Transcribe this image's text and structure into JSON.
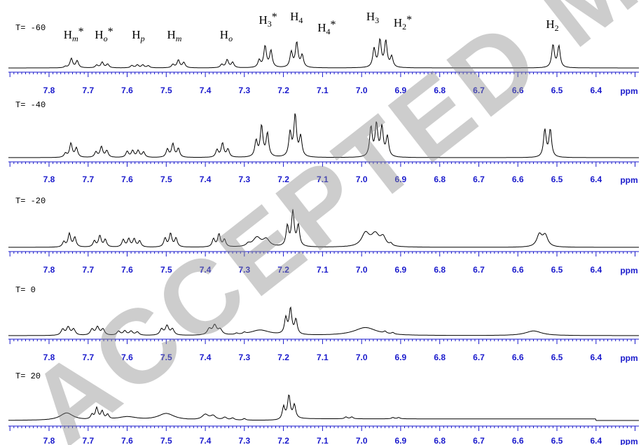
{
  "chart_data": {
    "type": "line",
    "x_unit": "ppm",
    "xlim": [
      6.3,
      7.9
    ],
    "x_reversed": true,
    "xtick_labels": [
      "7.8",
      "7.7",
      "7.6",
      "7.5",
      "7.4",
      "7.3",
      "7.2",
      "7.1",
      "7.0",
      "6.9",
      "6.8",
      "6.7",
      "6.6",
      "6.5",
      "6.4"
    ],
    "peak_labels": [
      {
        "label": "Hm*",
        "base": "H",
        "sub": "m",
        "sup": "*",
        "ppm": 7.745
      },
      {
        "label": "Ho*",
        "base": "H",
        "sub": "o",
        "sup": "*",
        "ppm": 7.665
      },
      {
        "label": "Hp",
        "base": "H",
        "sub": "p",
        "sup": "",
        "ppm": 7.57
      },
      {
        "label": "Hm",
        "base": "H",
        "sub": "m",
        "sup": "",
        "ppm": 7.48
      },
      {
        "label": "Ho",
        "base": "H",
        "sub": "o",
        "sup": "",
        "ppm": 7.345
      },
      {
        "label": "H3*",
        "base": "H",
        "sub": "3",
        "sup": "*",
        "ppm": 7.245
      },
      {
        "label": "H4",
        "base": "H",
        "sub": "4",
        "sup": "",
        "ppm": 7.165
      },
      {
        "label": "H4*",
        "base": "H",
        "sub": "4",
        "sup": "*",
        "ppm": 7.095
      },
      {
        "label": "H3",
        "base": "H",
        "sub": "3",
        "sup": "",
        "ppm": 6.97
      },
      {
        "label": "H2*",
        "base": "H",
        "sub": "2",
        "sup": "*",
        "ppm": 6.9
      },
      {
        "label": "H2",
        "base": "H",
        "sub": "2",
        "sup": "",
        "ppm": 6.51
      }
    ],
    "spectra": [
      {
        "temperature_label": "T= -60",
        "peaks": [
          [
            7.758,
            0.1,
            0.004
          ],
          [
            7.743,
            0.7,
            0.004
          ],
          [
            7.728,
            0.52,
            0.004
          ],
          [
            7.678,
            0.2,
            0.004
          ],
          [
            7.664,
            0.42,
            0.004
          ],
          [
            7.65,
            0.28,
            0.004
          ],
          [
            7.588,
            0.18,
            0.004
          ],
          [
            7.574,
            0.22,
            0.004
          ],
          [
            7.56,
            0.22,
            0.004
          ],
          [
            7.546,
            0.16,
            0.004
          ],
          [
            7.483,
            0.25,
            0.004
          ],
          [
            7.469,
            0.58,
            0.004
          ],
          [
            7.455,
            0.4,
            0.004
          ],
          [
            7.358,
            0.25,
            0.004
          ],
          [
            7.344,
            0.6,
            0.004
          ],
          [
            7.33,
            0.4,
            0.004
          ],
          [
            7.262,
            0.55,
            0.004
          ],
          [
            7.247,
            1.6,
            0.004
          ],
          [
            7.232,
            1.25,
            0.004
          ],
          [
            7.18,
            1.15,
            0.004
          ],
          [
            7.166,
            1.85,
            0.004
          ],
          [
            7.152,
            0.9,
            0.004
          ],
          [
            6.968,
            1.4,
            0.004
          ],
          [
            6.953,
            2.0,
            0.004
          ],
          [
            6.938,
            1.95,
            0.004
          ],
          [
            6.923,
            0.8,
            0.004
          ],
          [
            6.51,
            1.7,
            0.004
          ],
          [
            6.495,
            1.6,
            0.004
          ]
        ],
        "hump": null
      },
      {
        "temperature_label": "T= -40",
        "peaks": [
          [
            7.758,
            0.3,
            0.004
          ],
          [
            7.744,
            1.05,
            0.004
          ],
          [
            7.73,
            0.7,
            0.004
          ],
          [
            7.68,
            0.4,
            0.004
          ],
          [
            7.666,
            0.8,
            0.004
          ],
          [
            7.652,
            0.5,
            0.004
          ],
          [
            7.6,
            0.45,
            0.004
          ],
          [
            7.586,
            0.5,
            0.004
          ],
          [
            7.572,
            0.5,
            0.004
          ],
          [
            7.558,
            0.4,
            0.004
          ],
          [
            7.497,
            0.6,
            0.004
          ],
          [
            7.483,
            1.0,
            0.004
          ],
          [
            7.469,
            0.65,
            0.004
          ],
          [
            7.37,
            0.55,
            0.004
          ],
          [
            7.356,
            1.05,
            0.004
          ],
          [
            7.342,
            0.6,
            0.004
          ],
          [
            7.27,
            1.2,
            0.004
          ],
          [
            7.256,
            2.3,
            0.004
          ],
          [
            7.241,
            1.75,
            0.004
          ],
          [
            7.183,
            1.8,
            0.004
          ],
          [
            7.17,
            3.1,
            0.004
          ],
          [
            7.156,
            1.5,
            0.004
          ],
          [
            6.976,
            2.2,
            0.004
          ],
          [
            6.962,
            2.4,
            0.004
          ],
          [
            6.948,
            2.2,
            0.004
          ],
          [
            6.934,
            1.5,
            0.004
          ],
          [
            6.531,
            2.05,
            0.004
          ],
          [
            6.517,
            2.05,
            0.004
          ]
        ],
        "hump": null
      },
      {
        "temperature_label": "T= -20",
        "peaks": [
          [
            7.762,
            0.4,
            0.004
          ],
          [
            7.748,
            1.0,
            0.004
          ],
          [
            7.734,
            0.72,
            0.004
          ],
          [
            7.684,
            0.45,
            0.004
          ],
          [
            7.67,
            0.85,
            0.004
          ],
          [
            7.656,
            0.55,
            0.004
          ],
          [
            7.61,
            0.55,
            0.004
          ],
          [
            7.596,
            0.6,
            0.004
          ],
          [
            7.582,
            0.6,
            0.004
          ],
          [
            7.568,
            0.45,
            0.004
          ],
          [
            7.503,
            0.65,
            0.004
          ],
          [
            7.489,
            1.0,
            0.004
          ],
          [
            7.475,
            0.65,
            0.004
          ],
          [
            7.379,
            0.6,
            0.004
          ],
          [
            7.365,
            0.95,
            0.004
          ],
          [
            7.351,
            0.55,
            0.004
          ],
          [
            7.268,
            0.7,
            0.012
          ],
          [
            7.244,
            0.55,
            0.01
          ],
          [
            7.29,
            0.2,
            0.006
          ],
          [
            7.19,
            1.5,
            0.004
          ],
          [
            7.176,
            2.6,
            0.004
          ],
          [
            7.162,
            1.55,
            0.004
          ],
          [
            6.99,
            1.0,
            0.012
          ],
          [
            6.965,
            0.9,
            0.012
          ],
          [
            6.945,
            0.65,
            0.008
          ],
          [
            6.925,
            0.18,
            0.004
          ],
          [
            6.545,
            0.9,
            0.008
          ],
          [
            6.53,
            0.85,
            0.008
          ]
        ],
        "hump": null
      },
      {
        "temperature_label": "T= 0",
        "peaks": [
          [
            7.765,
            0.45,
            0.005
          ],
          [
            7.751,
            0.6,
            0.005
          ],
          [
            7.737,
            0.45,
            0.005
          ],
          [
            7.69,
            0.45,
            0.005
          ],
          [
            7.676,
            0.6,
            0.005
          ],
          [
            7.662,
            0.45,
            0.005
          ],
          [
            7.622,
            0.3,
            0.005
          ],
          [
            7.606,
            0.32,
            0.005
          ],
          [
            7.59,
            0.3,
            0.005
          ],
          [
            7.574,
            0.25,
            0.005
          ],
          [
            7.512,
            0.45,
            0.005
          ],
          [
            7.498,
            0.7,
            0.005
          ],
          [
            7.484,
            0.45,
            0.005
          ],
          [
            7.39,
            0.45,
            0.006
          ],
          [
            7.376,
            0.7,
            0.006
          ],
          [
            7.362,
            0.4,
            0.006
          ],
          [
            7.26,
            0.4,
            0.03
          ],
          [
            7.3,
            0.12,
            0.004
          ],
          [
            7.32,
            0.1,
            0.004
          ],
          [
            7.194,
            1.2,
            0.004
          ],
          [
            7.182,
            1.9,
            0.004
          ],
          [
            7.168,
            1.1,
            0.004
          ],
          [
            6.99,
            0.6,
            0.035
          ],
          [
            6.94,
            0.15,
            0.004
          ],
          [
            6.92,
            0.12,
            0.004
          ],
          [
            6.56,
            0.35,
            0.025
          ]
        ],
        "hump": null
      },
      {
        "temperature_label": "T= 20",
        "peaks": [
          [
            7.755,
            0.55,
            0.02
          ],
          [
            7.69,
            0.35,
            0.004
          ],
          [
            7.678,
            0.85,
            0.004
          ],
          [
            7.664,
            0.6,
            0.004
          ],
          [
            7.65,
            0.35,
            0.004
          ],
          [
            7.6,
            0.25,
            0.03
          ],
          [
            7.5,
            0.5,
            0.025
          ],
          [
            7.4,
            0.4,
            0.01
          ],
          [
            7.38,
            0.3,
            0.008
          ],
          [
            7.35,
            0.2,
            0.006
          ],
          [
            7.33,
            0.15,
            0.005
          ],
          [
            7.3,
            0.12,
            0.004
          ],
          [
            7.2,
            0.9,
            0.004
          ],
          [
            7.186,
            1.7,
            0.004
          ],
          [
            7.172,
            1.0,
            0.004
          ],
          [
            7.04,
            0.14,
            0.004
          ],
          [
            7.025,
            0.14,
            0.004
          ],
          [
            6.92,
            0.1,
            0.004
          ],
          [
            6.905,
            0.1,
            0.004
          ]
        ],
        "hump": [
          7.2,
          6.4,
          0.12
        ]
      }
    ]
  },
  "watermark": {
    "text": "ACCEPTED MANUSCRIPT",
    "color": "#8a8a8a"
  },
  "colors": {
    "axis": "#1a1acc",
    "trace": "#000000"
  }
}
